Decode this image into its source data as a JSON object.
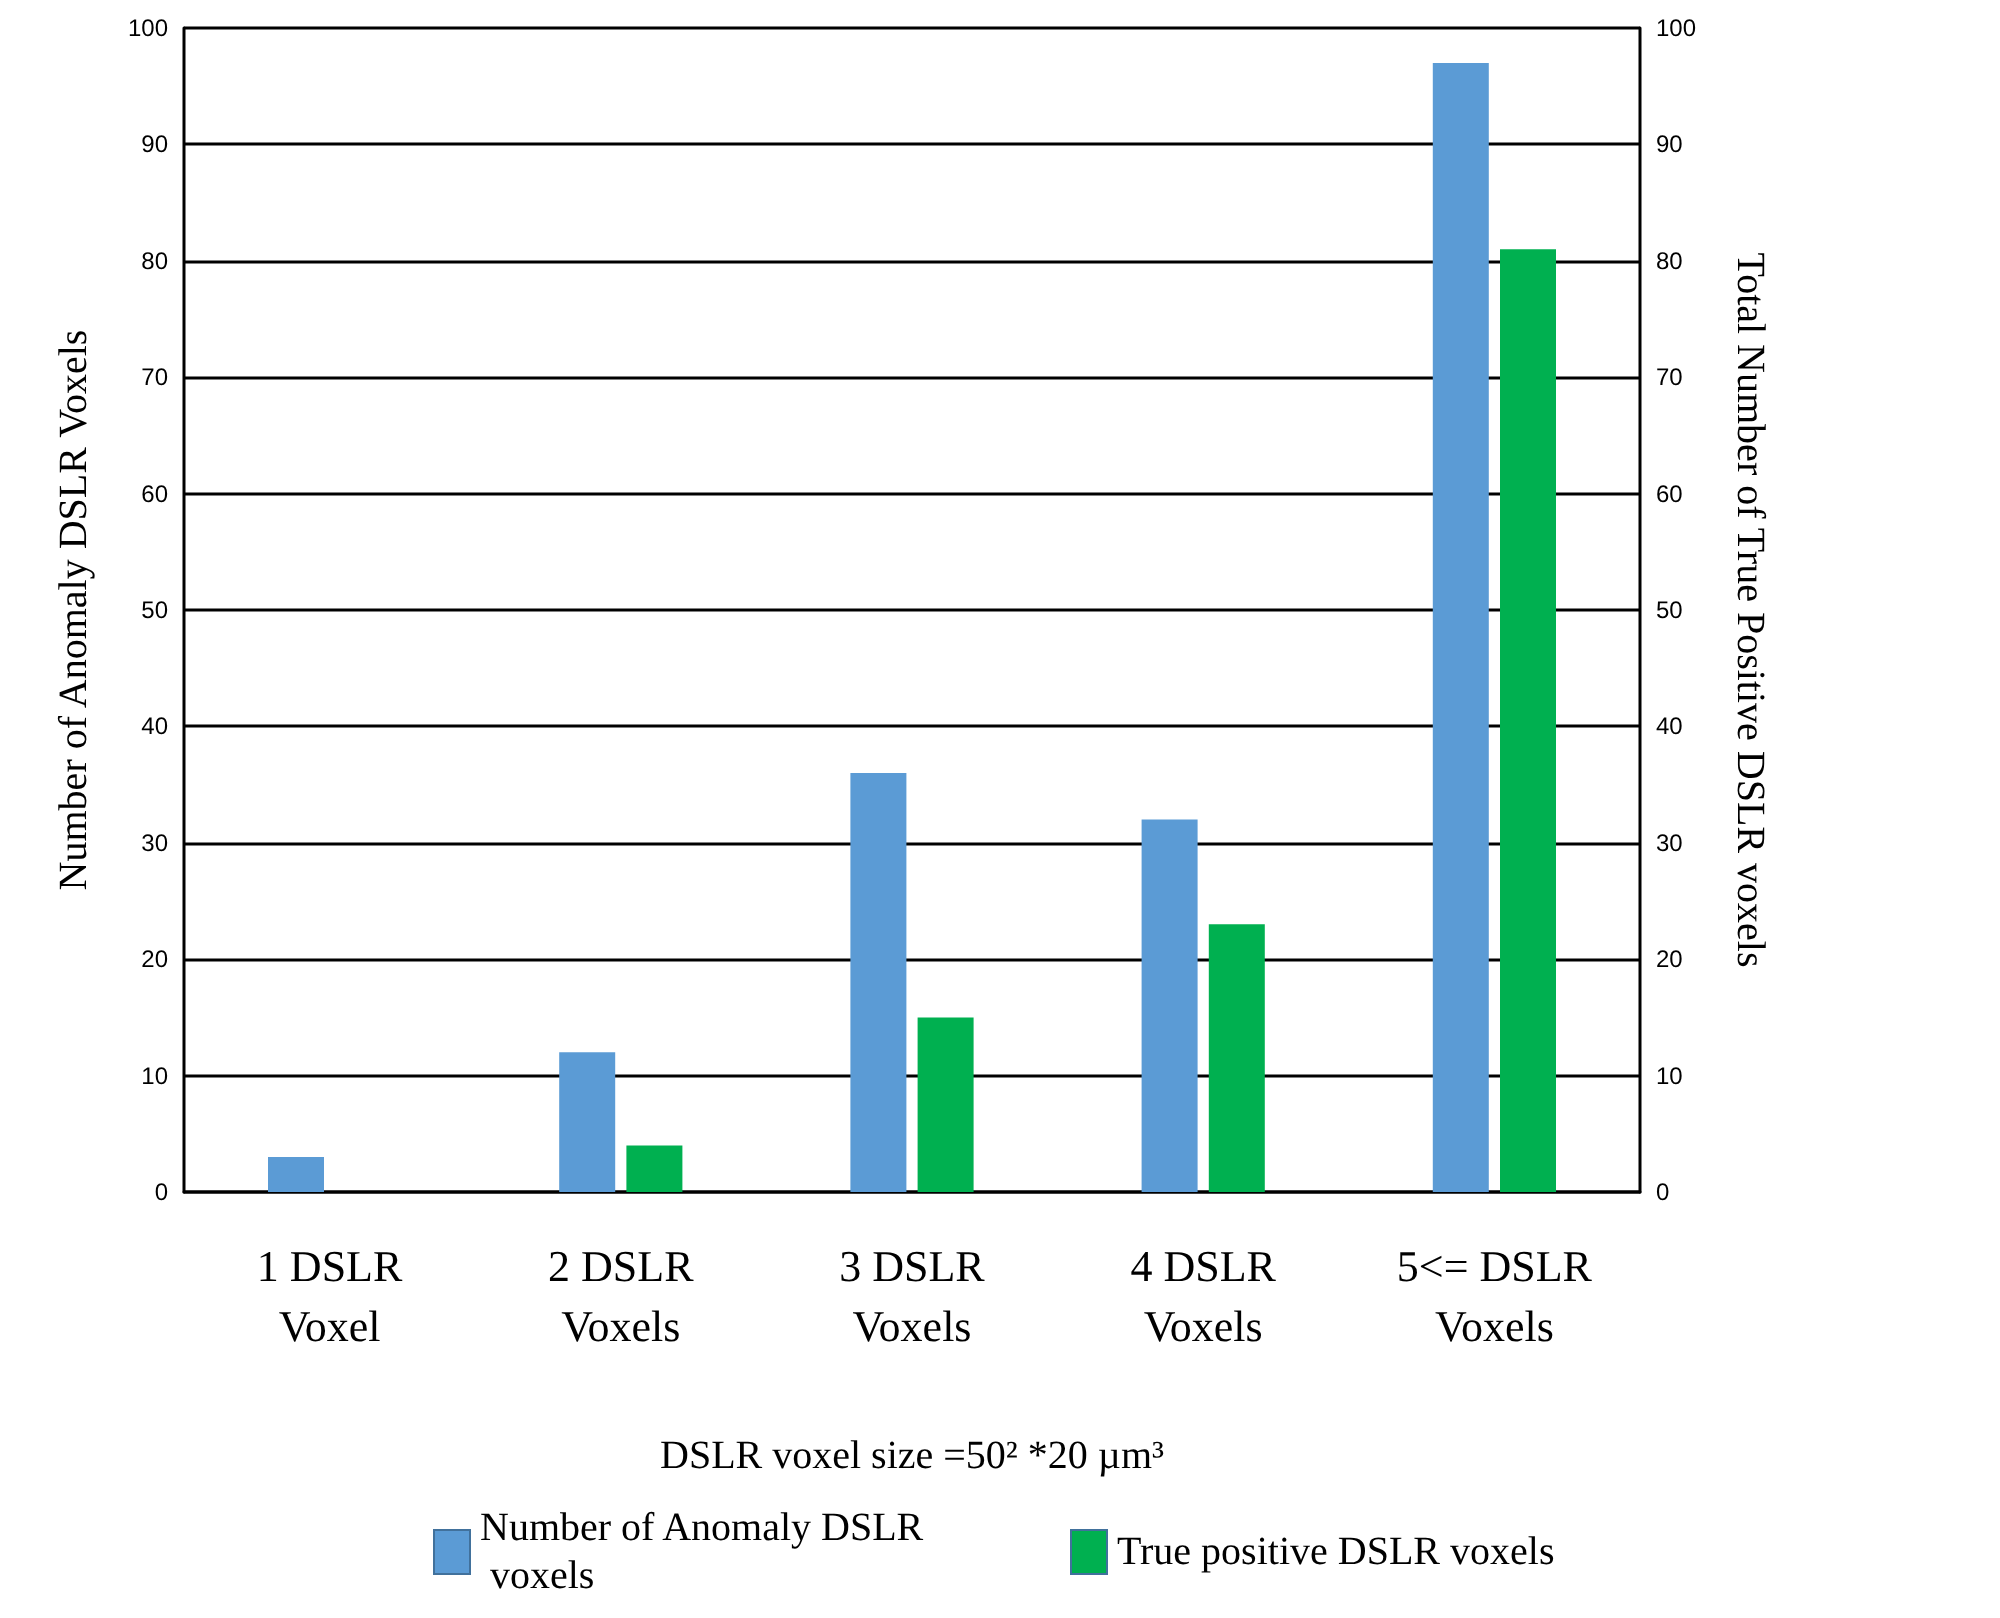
{
  "chart_data": {
    "type": "bar",
    "xlabel": "DSLR voxel size =50² *20 µm³",
    "ylabel": "Number of Anomaly DSLR Voxels",
    "y2label": "Total Number of True Positive DSLR voxels",
    "categories": [
      "1 DSLR\nVoxel",
      "2 DSLR\nVoxels",
      "3 DSLR\nVoxels",
      "4 DSLR\nVoxels",
      "5<= DSLR\nVoxels"
    ],
    "series": [
      {
        "name": "Number of Anomaly DSLR voxels",
        "color": "#5b9bd5",
        "values": [
          3,
          12,
          36,
          32,
          97
        ]
      },
      {
        "name": "True positive DSLR voxels",
        "color": "#00b050",
        "values": [
          0,
          4,
          15,
          23,
          81
        ]
      }
    ],
    "ylim": [
      0,
      100
    ],
    "yticks": [
      0,
      10,
      20,
      30,
      40,
      50,
      60,
      70,
      80,
      90,
      100
    ],
    "y2lim": [
      0,
      100
    ],
    "y2ticks": [
      0,
      10,
      20,
      30,
      40,
      50,
      60,
      70,
      80,
      90,
      100
    ],
    "grid": "y",
    "legend": "bottom"
  }
}
